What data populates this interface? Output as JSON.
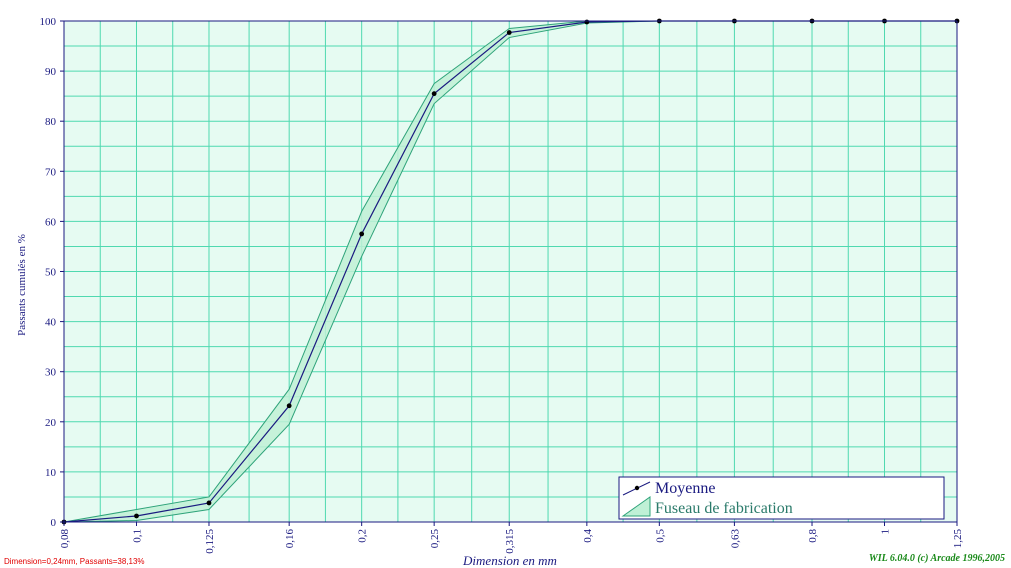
{
  "chart_data": {
    "type": "line",
    "xlabel": "Dimension en mm",
    "ylabel": "Passants cumulés en %",
    "x_scale": "log",
    "xlim": [
      0.08,
      1.25
    ],
    "ylim": [
      0,
      100
    ],
    "x_ticks": [
      "0,08",
      "0,1",
      "0,125",
      "0,16",
      "0,2",
      "0,25",
      "0,315",
      "0,4",
      "0,5",
      "0,63",
      "0,8",
      "1",
      "1,25"
    ],
    "x_tick_values": [
      0.08,
      0.1,
      0.125,
      0.16,
      0.2,
      0.25,
      0.315,
      0.4,
      0.5,
      0.63,
      0.8,
      1,
      1.25
    ],
    "y_ticks": [
      "0",
      "10",
      "20",
      "30",
      "40",
      "50",
      "60",
      "70",
      "80",
      "90",
      "100"
    ],
    "y_tick_values": [
      0,
      10,
      20,
      30,
      40,
      50,
      60,
      70,
      80,
      90,
      100
    ],
    "grid": true,
    "legend_position": "bottom-right",
    "series": [
      {
        "name": "Moyenne",
        "x": [
          0.08,
          0.1,
          0.125,
          0.16,
          0.2,
          0.25,
          0.315,
          0.4,
          0.5,
          0.63,
          0.8,
          1,
          1.25
        ],
        "y": [
          0,
          1.2,
          3.8,
          23.2,
          57.5,
          85.5,
          97.7,
          99.8,
          100,
          100,
          100,
          100,
          100
        ],
        "color": "#1a1a80"
      },
      {
        "name": "Fuseau de fabrication",
        "type": "band",
        "x": [
          0.08,
          0.1,
          0.125,
          0.16,
          0.2,
          0.25,
          0.315,
          0.4,
          0.5
        ],
        "upper": [
          0,
          2.5,
          5,
          26.5,
          62,
          87.5,
          98.5,
          100,
          100
        ],
        "lower": [
          0,
          0.3,
          2.5,
          19.5,
          53,
          83.5,
          96.7,
          99.6,
          100
        ],
        "color": "#2fa37a",
        "fill": "#bff0d6"
      }
    ],
    "colors": {
      "background": "#e6fbf2",
      "grid": "#4fd9b0",
      "axis": "#1a1a80",
      "marker": "#000000"
    }
  },
  "status": {
    "cursor_readout": "Dimension=0,24mm, Passants=38,13%",
    "copyright": "WIL 6.04.0 (c) Arcade 1996,2005"
  }
}
